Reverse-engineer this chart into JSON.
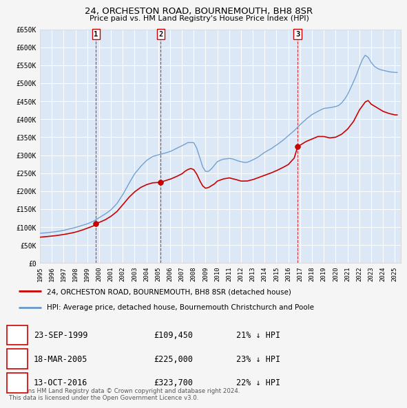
{
  "title": "24, ORCHESTON ROAD, BOURNEMOUTH, BH8 8SR",
  "subtitle": "Price paid vs. HM Land Registry's House Price Index (HPI)",
  "fig_bg_color": "#f5f5f5",
  "plot_bg_color": "#dce8f5",
  "grid_color": "#ffffff",
  "ylim": [
    0,
    650000
  ],
  "yticks": [
    0,
    50000,
    100000,
    150000,
    200000,
    250000,
    300000,
    350000,
    400000,
    450000,
    500000,
    550000,
    600000,
    650000
  ],
  "ytick_labels": [
    "£0",
    "£50K",
    "£100K",
    "£150K",
    "£200K",
    "£250K",
    "£300K",
    "£350K",
    "£400K",
    "£450K",
    "£500K",
    "£550K",
    "£600K",
    "£650K"
  ],
  "xmin": 1995.0,
  "xmax": 2025.5,
  "sale_color": "#cc0000",
  "hpi_color": "#6699cc",
  "transactions": [
    {
      "date": 1999.73,
      "price": 109450,
      "label": "1"
    },
    {
      "date": 2005.21,
      "price": 225000,
      "label": "2"
    },
    {
      "date": 2016.79,
      "price": 323700,
      "label": "3"
    }
  ],
  "legend_sale_label": "24, ORCHESTON ROAD, BOURNEMOUTH, BH8 8SR (detached house)",
  "legend_hpi_label": "HPI: Average price, detached house, Bournemouth Christchurch and Poole",
  "table_rows": [
    {
      "num": "1",
      "date": "23-SEP-1999",
      "price": "£109,450",
      "pct": "21% ↓ HPI"
    },
    {
      "num": "2",
      "date": "18-MAR-2005",
      "price": "£225,000",
      "pct": "23% ↓ HPI"
    },
    {
      "num": "3",
      "date": "13-OCT-2016",
      "price": "£323,700",
      "pct": "22% ↓ HPI"
    }
  ],
  "footer": "Contains HM Land Registry data © Crown copyright and database right 2024.\nThis data is licensed under the Open Government Licence v3.0.",
  "hpi_points": [
    [
      1995.0,
      83000
    ],
    [
      1995.5,
      84000
    ],
    [
      1996.0,
      86000
    ],
    [
      1996.5,
      88000
    ],
    [
      1997.0,
      91000
    ],
    [
      1997.5,
      95000
    ],
    [
      1998.0,
      99000
    ],
    [
      1998.5,
      104000
    ],
    [
      1999.0,
      109000
    ],
    [
      1999.5,
      116000
    ],
    [
      2000.0,
      126000
    ],
    [
      2000.5,
      136000
    ],
    [
      2001.0,
      148000
    ],
    [
      2001.5,
      165000
    ],
    [
      2002.0,
      190000
    ],
    [
      2002.5,
      220000
    ],
    [
      2003.0,
      248000
    ],
    [
      2003.5,
      268000
    ],
    [
      2004.0,
      285000
    ],
    [
      2004.5,
      296000
    ],
    [
      2005.0,
      301000
    ],
    [
      2005.5,
      305000
    ],
    [
      2006.0,
      310000
    ],
    [
      2006.5,
      318000
    ],
    [
      2007.0,
      326000
    ],
    [
      2007.5,
      335000
    ],
    [
      2008.0,
      335000
    ],
    [
      2008.25,
      320000
    ],
    [
      2008.5,
      295000
    ],
    [
      2008.75,
      268000
    ],
    [
      2009.0,
      255000
    ],
    [
      2009.25,
      255000
    ],
    [
      2009.5,
      262000
    ],
    [
      2009.75,
      272000
    ],
    [
      2010.0,
      282000
    ],
    [
      2010.25,
      286000
    ],
    [
      2010.5,
      289000
    ],
    [
      2010.75,
      290000
    ],
    [
      2011.0,
      291000
    ],
    [
      2011.25,
      290000
    ],
    [
      2011.5,
      287000
    ],
    [
      2011.75,
      284000
    ],
    [
      2012.0,
      282000
    ],
    [
      2012.25,
      280000
    ],
    [
      2012.5,
      280000
    ],
    [
      2012.75,
      283000
    ],
    [
      2013.0,
      287000
    ],
    [
      2013.25,
      291000
    ],
    [
      2013.5,
      296000
    ],
    [
      2013.75,
      302000
    ],
    [
      2014.0,
      308000
    ],
    [
      2014.5,
      317000
    ],
    [
      2015.0,
      328000
    ],
    [
      2015.5,
      340000
    ],
    [
      2016.0,
      354000
    ],
    [
      2016.5,
      368000
    ],
    [
      2017.0,
      385000
    ],
    [
      2017.5,
      400000
    ],
    [
      2018.0,
      413000
    ],
    [
      2018.5,
      422000
    ],
    [
      2019.0,
      430000
    ],
    [
      2019.5,
      432000
    ],
    [
      2020.0,
      435000
    ],
    [
      2020.25,
      438000
    ],
    [
      2020.5,
      445000
    ],
    [
      2020.75,
      455000
    ],
    [
      2021.0,
      468000
    ],
    [
      2021.25,
      485000
    ],
    [
      2021.5,
      503000
    ],
    [
      2021.75,
      522000
    ],
    [
      2022.0,
      545000
    ],
    [
      2022.25,
      565000
    ],
    [
      2022.5,
      578000
    ],
    [
      2022.75,
      572000
    ],
    [
      2023.0,
      558000
    ],
    [
      2023.25,
      548000
    ],
    [
      2023.5,
      542000
    ],
    [
      2023.75,
      538000
    ],
    [
      2024.0,
      536000
    ],
    [
      2024.5,
      532000
    ],
    [
      2025.0,
      530000
    ]
  ],
  "sale_points": [
    [
      1995.0,
      72000
    ],
    [
      1995.5,
      73500
    ],
    [
      1996.0,
      75000
    ],
    [
      1996.5,
      77000
    ],
    [
      1997.0,
      79500
    ],
    [
      1997.5,
      82500
    ],
    [
      1998.0,
      86000
    ],
    [
      1998.5,
      91000
    ],
    [
      1999.0,
      97000
    ],
    [
      1999.5,
      103000
    ],
    [
      1999.73,
      109450
    ],
    [
      2000.0,
      113000
    ],
    [
      2000.5,
      120000
    ],
    [
      2001.0,
      130000
    ],
    [
      2001.5,
      143000
    ],
    [
      2002.0,
      162000
    ],
    [
      2002.5,
      182000
    ],
    [
      2003.0,
      198000
    ],
    [
      2003.5,
      210000
    ],
    [
      2004.0,
      218000
    ],
    [
      2004.5,
      223000
    ],
    [
      2005.0,
      224000
    ],
    [
      2005.21,
      225000
    ],
    [
      2005.5,
      228000
    ],
    [
      2006.0,
      233000
    ],
    [
      2006.5,
      240000
    ],
    [
      2007.0,
      248000
    ],
    [
      2007.25,
      255000
    ],
    [
      2007.5,
      260000
    ],
    [
      2007.75,
      263000
    ],
    [
      2008.0,
      260000
    ],
    [
      2008.25,
      248000
    ],
    [
      2008.5,
      230000
    ],
    [
      2008.75,
      215000
    ],
    [
      2009.0,
      208000
    ],
    [
      2009.25,
      210000
    ],
    [
      2009.5,
      215000
    ],
    [
      2009.75,
      220000
    ],
    [
      2010.0,
      228000
    ],
    [
      2010.5,
      234000
    ],
    [
      2011.0,
      237000
    ],
    [
      2011.5,
      233000
    ],
    [
      2012.0,
      228000
    ],
    [
      2012.5,
      228000
    ],
    [
      2013.0,
      232000
    ],
    [
      2013.5,
      238000
    ],
    [
      2014.0,
      244000
    ],
    [
      2014.5,
      250000
    ],
    [
      2015.0,
      257000
    ],
    [
      2015.5,
      265000
    ],
    [
      2016.0,
      274000
    ],
    [
      2016.5,
      292000
    ],
    [
      2016.79,
      323700
    ],
    [
      2017.0,
      328000
    ],
    [
      2017.5,
      338000
    ],
    [
      2018.0,
      345000
    ],
    [
      2018.5,
      352000
    ],
    [
      2019.0,
      352000
    ],
    [
      2019.5,
      348000
    ],
    [
      2020.0,
      350000
    ],
    [
      2020.5,
      358000
    ],
    [
      2021.0,
      372000
    ],
    [
      2021.5,
      393000
    ],
    [
      2022.0,
      425000
    ],
    [
      2022.5,
      448000
    ],
    [
      2022.75,
      452000
    ],
    [
      2023.0,
      442000
    ],
    [
      2023.5,
      432000
    ],
    [
      2024.0,
      422000
    ],
    [
      2024.5,
      416000
    ],
    [
      2025.0,
      412000
    ]
  ]
}
